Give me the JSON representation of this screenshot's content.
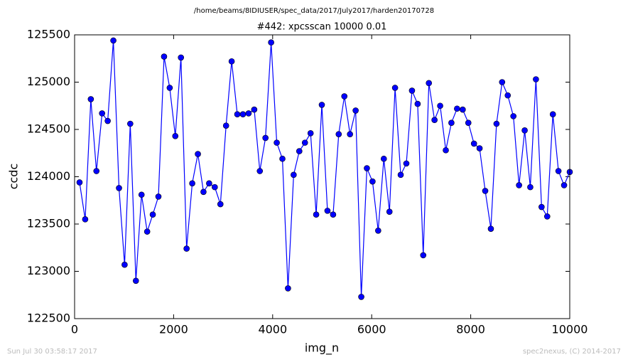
{
  "chart_data": {
    "type": "line",
    "suptitle": "/home/beams/8IDIUSER/spec_data/2017/July2017/harden20170728",
    "title": "#442: xpcsscan 10000 0.01",
    "x_label": "img_n",
    "y_label": "ccdc",
    "footer_left": "Sun Jul 30 03:58:17 2017",
    "footer_right": "spec2nexus, (C) 2014-2017",
    "x": [
      100,
      214,
      328,
      441,
      555,
      669,
      783,
      897,
      1010,
      1124,
      1238,
      1352,
      1466,
      1579,
      1693,
      1807,
      1921,
      2034,
      2148,
      2262,
      2376,
      2490,
      2603,
      2717,
      2831,
      2945,
      3059,
      3172,
      3286,
      3400,
      3514,
      3628,
      3741,
      3855,
      3969,
      4083,
      4197,
      4310,
      4424,
      4538,
      4652,
      4766,
      4879,
      4993,
      5107,
      5221,
      5334,
      5448,
      5562,
      5676,
      5790,
      5903,
      6017,
      6131,
      6245,
      6359,
      6472,
      6586,
      6700,
      6814,
      6928,
      7041,
      7155,
      7269,
      7383,
      7497,
      7610,
      7724,
      7838,
      7952,
      8066,
      8179,
      8293,
      8407,
      8521,
      8634,
      8748,
      8862,
      8976,
      9090,
      9203,
      9317,
      9431,
      9545,
      9659,
      9772,
      9886,
      10000
    ],
    "series": [
      {
        "name": "ccdc",
        "color": "#0000ff",
        "values": [
          123940,
          123550,
          124820,
          124060,
          124670,
          124590,
          125440,
          123880,
          123070,
          124560,
          122900,
          123810,
          123420,
          123600,
          123790,
          125270,
          124940,
          124430,
          125260,
          123240,
          123930,
          124240,
          123840,
          123930,
          123890,
          123710,
          124540,
          125220,
          124660,
          124660,
          124670,
          124710,
          124060,
          124410,
          125420,
          124360,
          124190,
          122820,
          124020,
          124270,
          124360,
          124460,
          123600,
          124760,
          123640,
          123600,
          124450,
          124850,
          124450,
          124700,
          122730,
          124090,
          123950,
          123430,
          124190,
          123630,
          124940,
          124020,
          124140,
          124910,
          124770,
          123170,
          124990,
          124600,
          124750,
          124280,
          124570,
          124720,
          124710,
          124570,
          124350,
          124300,
          123850,
          123450,
          124560,
          125000,
          124860,
          124640,
          123910,
          124490,
          123890,
          125030,
          123680,
          123580,
          124660,
          124060,
          123910,
          124050
        ]
      }
    ],
    "xlim": [
      0,
      10000
    ],
    "ylim": [
      122500,
      125500
    ],
    "xticks": [
      0,
      2000,
      4000,
      6000,
      8000,
      10000
    ],
    "yticks": [
      122500,
      123000,
      123500,
      124000,
      124500,
      125000,
      125500
    ]
  }
}
